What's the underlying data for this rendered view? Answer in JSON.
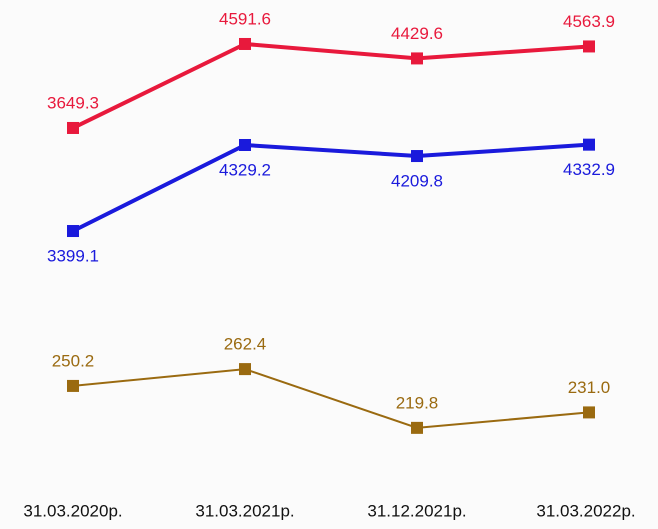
{
  "chart_data": {
    "type": "line",
    "categories": [
      "31.03.2020р.",
      "31.03.2021р.",
      "31.12.2021р.",
      "31.03.2022р."
    ],
    "series": [
      {
        "color": "#e8193c",
        "values": [
          3649.3,
          4591.6,
          4429.6,
          4563.9
        ],
        "value_labels": [
          "3649.3",
          "4591.6",
          "4429.6",
          "4563.9"
        ],
        "ylim": [
          -300,
          5085
        ],
        "label_side": "above"
      },
      {
        "color": "#1a1adc",
        "values": [
          3399.1,
          4329.2,
          4209.8,
          4332.9
        ],
        "value_labels": [
          "3399.1",
          "4329.2",
          "4209.8",
          "4332.9"
        ],
        "ylim": [
          707,
          5897
        ],
        "label_side": "below"
      },
      {
        "color": "#9a6a10",
        "values": [
          250.2,
          262.4,
          219.8,
          231.0
        ],
        "value_labels": [
          "250.2",
          "262.4",
          "219.8",
          "231.0"
        ],
        "ylim": [
          182,
          530
        ],
        "label_side": "above"
      }
    ]
  }
}
